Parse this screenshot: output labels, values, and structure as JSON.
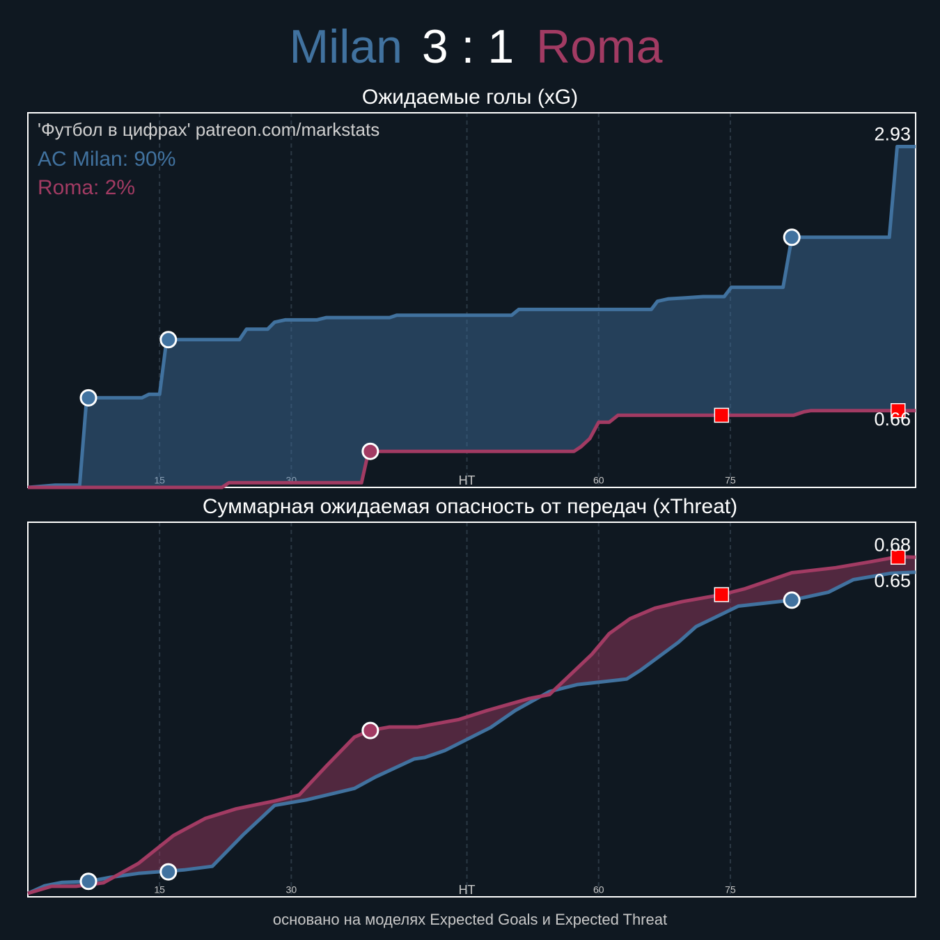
{
  "header": {
    "home": "Milan",
    "score": "3 : 1",
    "away": "Roma"
  },
  "chart_data": [
    {
      "type": "line",
      "title": "Ожидаемые голы (xG)",
      "annotation": "'Футбол в цифрах' patreon.com/markstats",
      "probabilities": [
        "AC Milan: 90%",
        "Roma: 2%"
      ],
      "xlim": [
        0,
        101.1
      ],
      "ylim": [
        0,
        3.22
      ],
      "xticks": [
        15,
        30,
        {
          "value": 50,
          "label": "HT"
        },
        {
          "value": 65,
          "label": "60"
        },
        {
          "value": 80,
          "label": "75"
        }
      ],
      "grid": true,
      "series": [
        {
          "color": "#41729f",
          "x": [
            0,
            3.1,
            5.9,
            6.7,
            13.0,
            13.8,
            15.0,
            15.8,
            24.1,
            24.9,
            27.3,
            28.1,
            29.3,
            32.9,
            34.0,
            41.2,
            42.0,
            55.1,
            55.9,
            71.0,
            71.7,
            72.9,
            74.9,
            76.9,
            79.3,
            80.1,
            86.0,
            87.0,
            98.1,
            99.0,
            101.1
          ],
          "values": [
            0,
            0.02,
            0.02,
            0.77,
            0.77,
            0.8,
            0.8,
            1.27,
            1.27,
            1.36,
            1.36,
            1.42,
            1.44,
            1.44,
            1.46,
            1.46,
            1.48,
            1.48,
            1.53,
            1.53,
            1.6,
            1.62,
            1.63,
            1.64,
            1.64,
            1.72,
            1.72,
            2.15,
            2.15,
            2.93,
            2.93
          ],
          "goals": {
            "x": [
              6.9,
              16.0,
              87.0
            ],
            "values": [
              0.77,
              1.27,
              2.15
            ]
          }
        },
        {
          "color": "#a23b63",
          "x": [
            0,
            22.1,
            22.9,
            38.0,
            38.8,
            62.2,
            63.0,
            64.0,
            65.0,
            66.2,
            67.2,
            87.2,
            88.4,
            89.2,
            101.1
          ],
          "values": [
            0,
            0,
            0.04,
            0.04,
            0.31,
            0.31,
            0.35,
            0.42,
            0.56,
            0.56,
            0.62,
            0.62,
            0.65,
            0.66,
            0.66
          ],
          "goals": {
            "x": [
              39.0
            ],
            "values": [
              0.31
            ]
          },
          "red_cards": {
            "x": [
              79.0,
              99.1
            ],
            "values": [
              0.62,
              0.66
            ]
          }
        }
      ]
    },
    {
      "type": "line",
      "title": "Суммарная ожидаемая опасность от передач (xThreat)",
      "xlim": [
        0,
        101.1
      ],
      "ylim": [
        0,
        0.75
      ],
      "xticks": [
        15,
        30,
        {
          "value": 50,
          "label": "HT"
        },
        {
          "value": 65,
          "label": "60"
        },
        {
          "value": 80,
          "label": "75"
        }
      ],
      "grid": true,
      "series": [
        {
          "color": "#41729f",
          "x": [
            0,
            1.9,
            3.9,
            6.9,
            9.4,
            12.6,
            17.8,
            21.0,
            24.5,
            28.1,
            31.7,
            37.2,
            39.6,
            44.0,
            45.2,
            47.5,
            52.7,
            55.5,
            59.4,
            62.6,
            68.2,
            69.8,
            74.1,
            76.1,
            80.9,
            87.0,
            91.2,
            94.0,
            98.3,
            101.1
          ],
          "values": [
            0.007,
            0.022,
            0.029,
            0.031,
            0.039,
            0.047,
            0.054,
            0.061,
            0.124,
            0.183,
            0.194,
            0.217,
            0.24,
            0.276,
            0.279,
            0.293,
            0.339,
            0.373,
            0.411,
            0.425,
            0.436,
            0.454,
            0.51,
            0.541,
            0.582,
            0.594,
            0.61,
            0.635,
            0.648,
            0.65
          ],
          "goals": {
            "x": [
              6.9,
              16.0,
              87.0
            ],
            "values": [
              0.031,
              0.05,
              0.594
            ]
          }
        },
        {
          "color": "#a23b63",
          "x": [
            0,
            2.7,
            5.5,
            8.6,
            12.6,
            16.6,
            20.2,
            23.7,
            28.1,
            30.9,
            34.0,
            37.2,
            39.0,
            41.2,
            44.4,
            49.1,
            52.3,
            57.1,
            59.4,
            64.2,
            66.2,
            68.6,
            71.4,
            74.5,
            79.0,
            81.7,
            87.0,
            92.0,
            96.0,
            99.1,
            101.1
          ],
          "values": [
            0.007,
            0.021,
            0.021,
            0.028,
            0.067,
            0.123,
            0.157,
            0.176,
            0.192,
            0.204,
            0.262,
            0.32,
            0.333,
            0.34,
            0.34,
            0.355,
            0.373,
            0.397,
            0.405,
            0.485,
            0.527,
            0.557,
            0.578,
            0.591,
            0.605,
            0.617,
            0.649,
            0.659,
            0.671,
            0.681,
            0.68
          ],
          "goals": {
            "x": [
              39.0
            ],
            "values": [
              0.333
            ]
          },
          "red_cards": {
            "x": [
              79.0,
              99.1
            ],
            "values": [
              0.605,
              0.68
            ]
          }
        }
      ]
    }
  ],
  "footer": "основано на моделях Expected Goals и Expected Threat"
}
